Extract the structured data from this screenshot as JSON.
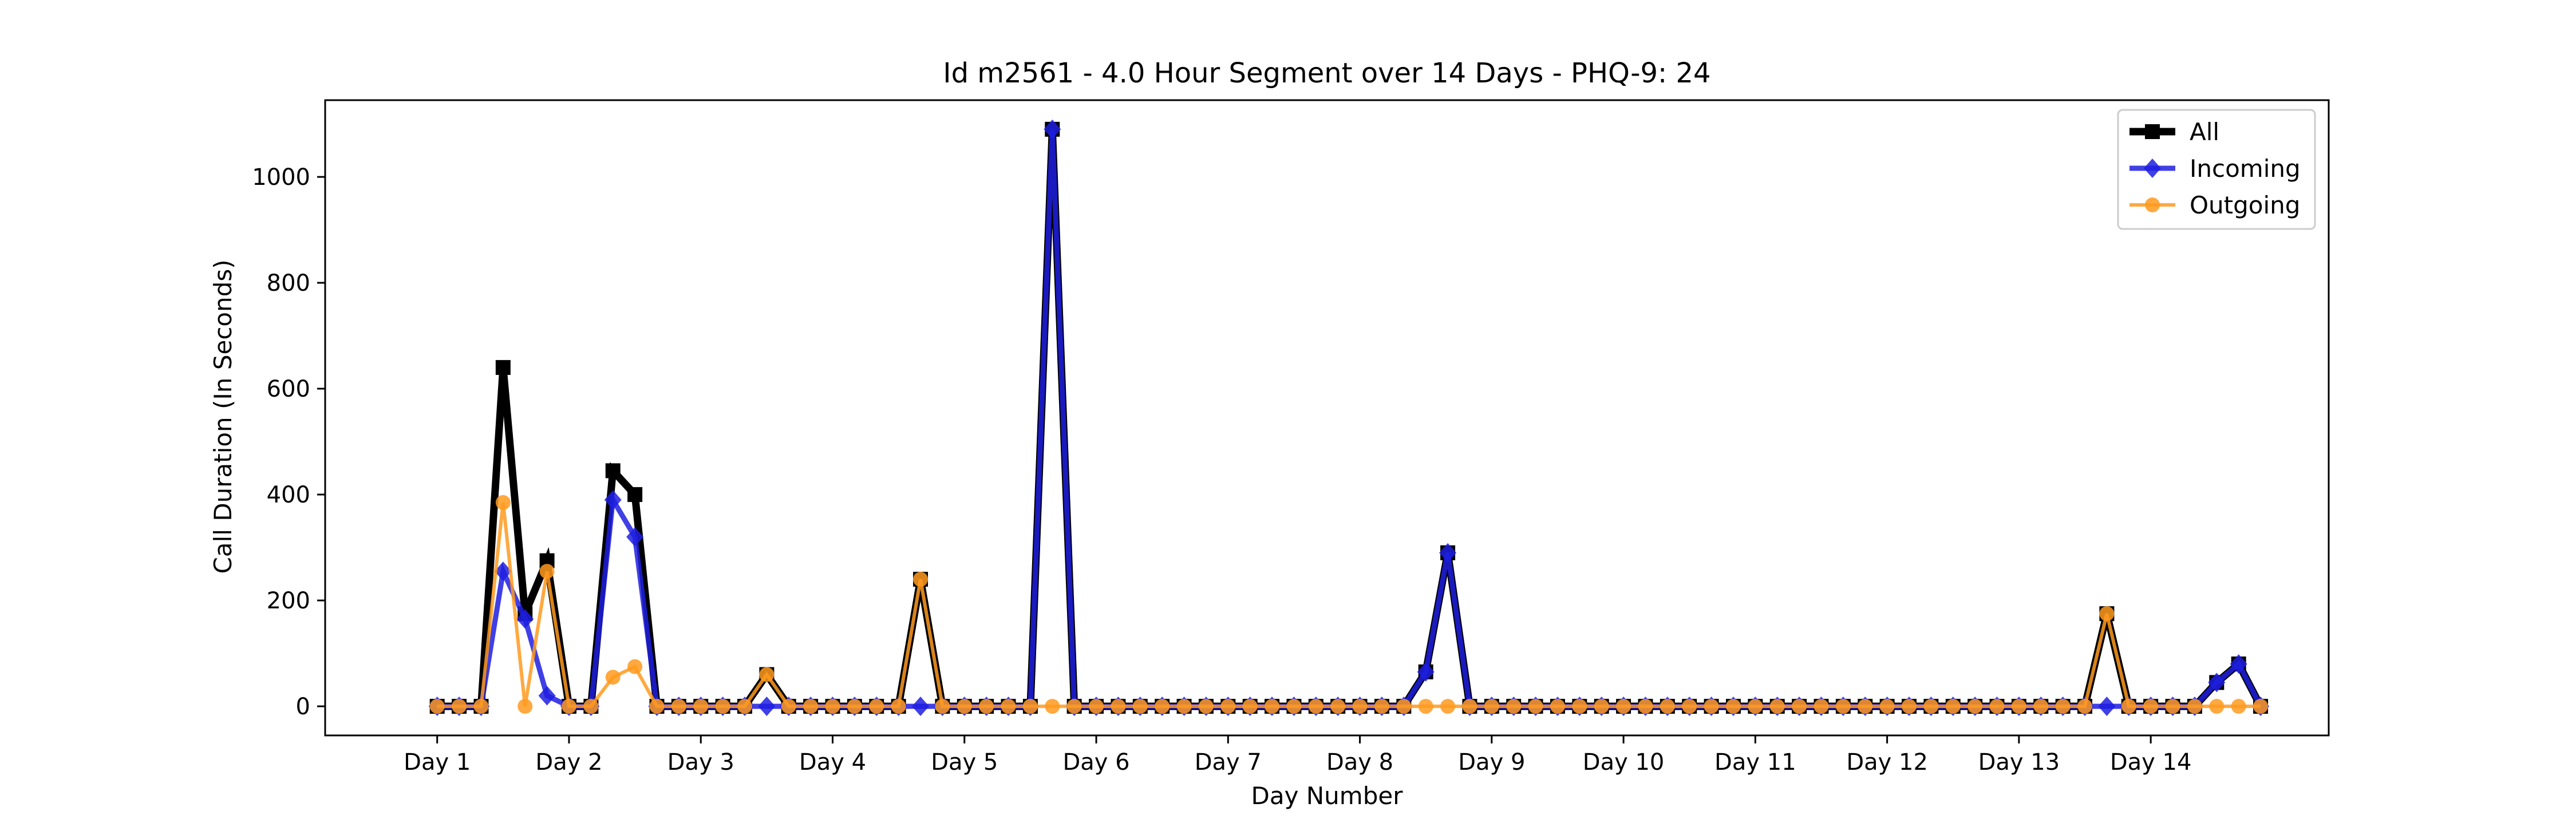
{
  "chart_data": {
    "type": "line",
    "title": "Id m2561 - 4.0 Hour Segment over 14 Days - PHQ-9: 24",
    "xlabel": "Day Number",
    "ylabel": "Call Duration (In Seconds)",
    "x_tick_labels": [
      "Day 1",
      "Day 2",
      "Day 3",
      "Day 4",
      "Day 5",
      "Day 6",
      "Day 7",
      "Day 8",
      "Day 9",
      "Day 10",
      "Day 11",
      "Day 12",
      "Day 13",
      "Day 14"
    ],
    "y_ticks": [
      0,
      200,
      400,
      600,
      800,
      1000
    ],
    "xlim": [
      0.15,
      15.35
    ],
    "ylim": [
      -55,
      1145
    ],
    "grid": false,
    "legend_position": "top-right",
    "x": [
      1.0,
      1.1667,
      1.3333,
      1.5,
      1.6667,
      1.8333,
      2.0,
      2.1667,
      2.3333,
      2.5,
      2.6667,
      2.8333,
      3.0,
      3.1667,
      3.3333,
      3.5,
      3.6667,
      3.8333,
      4.0,
      4.1667,
      4.3333,
      4.5,
      4.6667,
      4.8333,
      5.0,
      5.1667,
      5.3333,
      5.5,
      5.6667,
      5.8333,
      6.0,
      6.1667,
      6.3333,
      6.5,
      6.6667,
      6.8333,
      7.0,
      7.1667,
      7.3333,
      7.5,
      7.6667,
      7.8333,
      8.0,
      8.1667,
      8.3333,
      8.5,
      8.6667,
      8.8333,
      9.0,
      9.1667,
      9.3333,
      9.5,
      9.6667,
      9.8333,
      10.0,
      10.1667,
      10.3333,
      10.5,
      10.6667,
      10.8333,
      11.0,
      11.1667,
      11.3333,
      11.5,
      11.6667,
      11.8333,
      12.0,
      12.1667,
      12.3333,
      12.5,
      12.6667,
      12.8333,
      13.0,
      13.1667,
      13.3333,
      13.5,
      13.6667,
      13.8333,
      14.0,
      14.1667,
      14.3333,
      14.5,
      14.6667,
      14.8333
    ],
    "series": [
      {
        "name": "All",
        "color": "#000000",
        "marker": "square",
        "values": [
          0,
          0,
          0,
          640,
          175,
          275,
          0,
          0,
          445,
          400,
          0,
          0,
          0,
          0,
          0,
          60,
          0,
          0,
          0,
          0,
          0,
          0,
          240,
          0,
          0,
          0,
          0,
          0,
          1090,
          0,
          0,
          0,
          0,
          0,
          0,
          0,
          0,
          0,
          0,
          0,
          0,
          0,
          0,
          0,
          0,
          65,
          290,
          0,
          0,
          0,
          0,
          0,
          0,
          0,
          0,
          0,
          0,
          0,
          0,
          0,
          0,
          0,
          0,
          0,
          0,
          0,
          0,
          0,
          0,
          0,
          0,
          0,
          0,
          0,
          0,
          0,
          175,
          0,
          0,
          0,
          0,
          45,
          80,
          0
        ]
      },
      {
        "name": "Incoming",
        "color": "#1f1fe0",
        "marker": "diamond",
        "values": [
          0,
          0,
          0,
          255,
          165,
          20,
          0,
          0,
          390,
          320,
          0,
          0,
          0,
          0,
          0,
          0,
          0,
          0,
          0,
          0,
          0,
          0,
          0,
          0,
          0,
          0,
          0,
          0,
          1090,
          0,
          0,
          0,
          0,
          0,
          0,
          0,
          0,
          0,
          0,
          0,
          0,
          0,
          0,
          0,
          0,
          65,
          290,
          0,
          0,
          0,
          0,
          0,
          0,
          0,
          0,
          0,
          0,
          0,
          0,
          0,
          0,
          0,
          0,
          0,
          0,
          0,
          0,
          0,
          0,
          0,
          0,
          0,
          0,
          0,
          0,
          0,
          0,
          0,
          0,
          0,
          0,
          45,
          80,
          0
        ]
      },
      {
        "name": "Outgoing",
        "color": "#ff9a1f",
        "marker": "circle",
        "values": [
          0,
          0,
          0,
          385,
          0,
          255,
          0,
          0,
          55,
          75,
          0,
          0,
          0,
          0,
          0,
          60,
          0,
          0,
          0,
          0,
          0,
          0,
          240,
          0,
          0,
          0,
          0,
          0,
          0,
          0,
          0,
          0,
          0,
          0,
          0,
          0,
          0,
          0,
          0,
          0,
          0,
          0,
          0,
          0,
          0,
          0,
          0,
          0,
          0,
          0,
          0,
          0,
          0,
          0,
          0,
          0,
          0,
          0,
          0,
          0,
          0,
          0,
          0,
          0,
          0,
          0,
          0,
          0,
          0,
          0,
          0,
          0,
          0,
          0,
          0,
          0,
          175,
          0,
          0,
          0,
          0,
          0,
          0,
          0
        ]
      }
    ]
  }
}
